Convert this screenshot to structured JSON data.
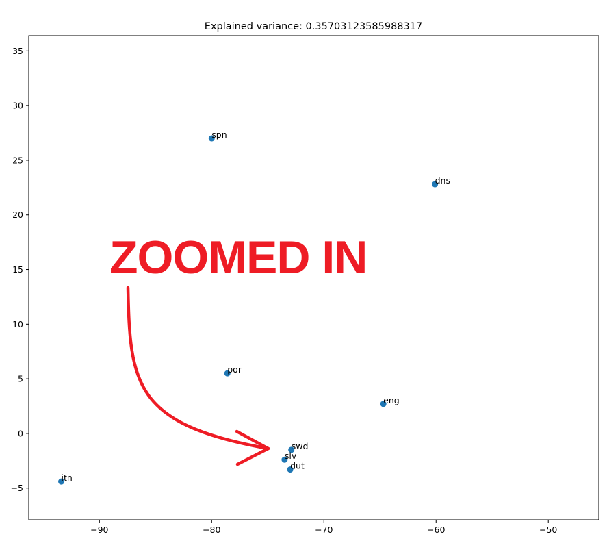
{
  "chart_data": {
    "type": "scatter",
    "title": "Explained variance: 0.35703123585988317",
    "xlabel": "",
    "ylabel": "",
    "xlim": [
      -96.3,
      -45.5
    ],
    "ylim": [
      -7.9,
      36.4
    ],
    "grid": false,
    "x_ticks": [
      -90,
      -80,
      -70,
      -60,
      -50
    ],
    "x_tick_labels": [
      "−90",
      "−80",
      "−70",
      "−60",
      "−50"
    ],
    "y_ticks": [
      -5,
      0,
      5,
      10,
      15,
      20,
      25,
      30,
      35
    ],
    "y_tick_labels": [
      "−5",
      "0",
      "5",
      "10",
      "15",
      "20",
      "25",
      "30",
      "35"
    ],
    "marker_color": "#1f77b4",
    "points": [
      {
        "label": "spn",
        "x": -80.0,
        "y": 27.0
      },
      {
        "label": "dns",
        "x": -60.1,
        "y": 22.8
      },
      {
        "label": "por",
        "x": -78.6,
        "y": 5.5
      },
      {
        "label": "eng",
        "x": -64.7,
        "y": 2.7
      },
      {
        "label": "swd",
        "x": -72.9,
        "y": -1.5
      },
      {
        "label": "slv",
        "x": -73.5,
        "y": -2.4
      },
      {
        "label": "dut",
        "x": -73.0,
        "y": -3.3
      },
      {
        "label": "itn",
        "x": -93.4,
        "y": -4.4
      }
    ]
  },
  "annotation": {
    "text": "ZOOMED IN",
    "color": "#ee1c25"
  }
}
